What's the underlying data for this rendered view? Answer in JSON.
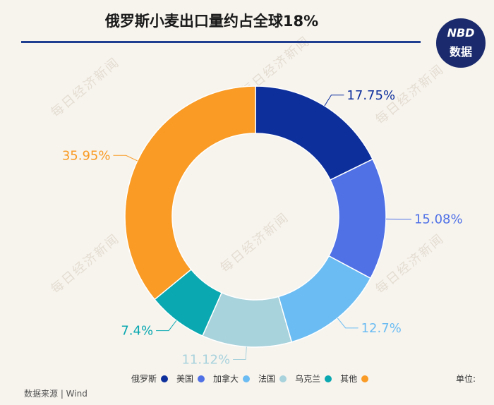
{
  "title": "俄罗斯小麦出口量约占全球18%",
  "logo": {
    "line1": "NBD",
    "line2": "数据"
  },
  "watermark": "每日经济新闻",
  "legend_unit": "单位:",
  "source": "数据来源 | Wind",
  "chart_data": {
    "type": "pie",
    "donut": true,
    "title": "俄罗斯小麦出口量约占全球18%",
    "legend_placement": "bottom",
    "slices": [
      {
        "label": "俄罗斯",
        "value": 17.75,
        "value_label": "17.75%",
        "color": "#0d2f9c"
      },
      {
        "label": "美国",
        "value": 15.08,
        "value_label": "15.08%",
        "color": "#5071e6"
      },
      {
        "label": "加拿大",
        "value": 12.7,
        "value_label": "12.7%",
        "color": "#6bbcf2"
      },
      {
        "label": "法国",
        "value": 11.12,
        "value_label": "11.12%",
        "color": "#a8d2dc"
      },
      {
        "label": "乌克兰",
        "value": 7.4,
        "value_label": "7.4%",
        "color": "#0aa8b0"
      },
      {
        "label": "其他",
        "value": 35.95,
        "value_label": "35.95%",
        "color": "#f99b25"
      }
    ]
  }
}
